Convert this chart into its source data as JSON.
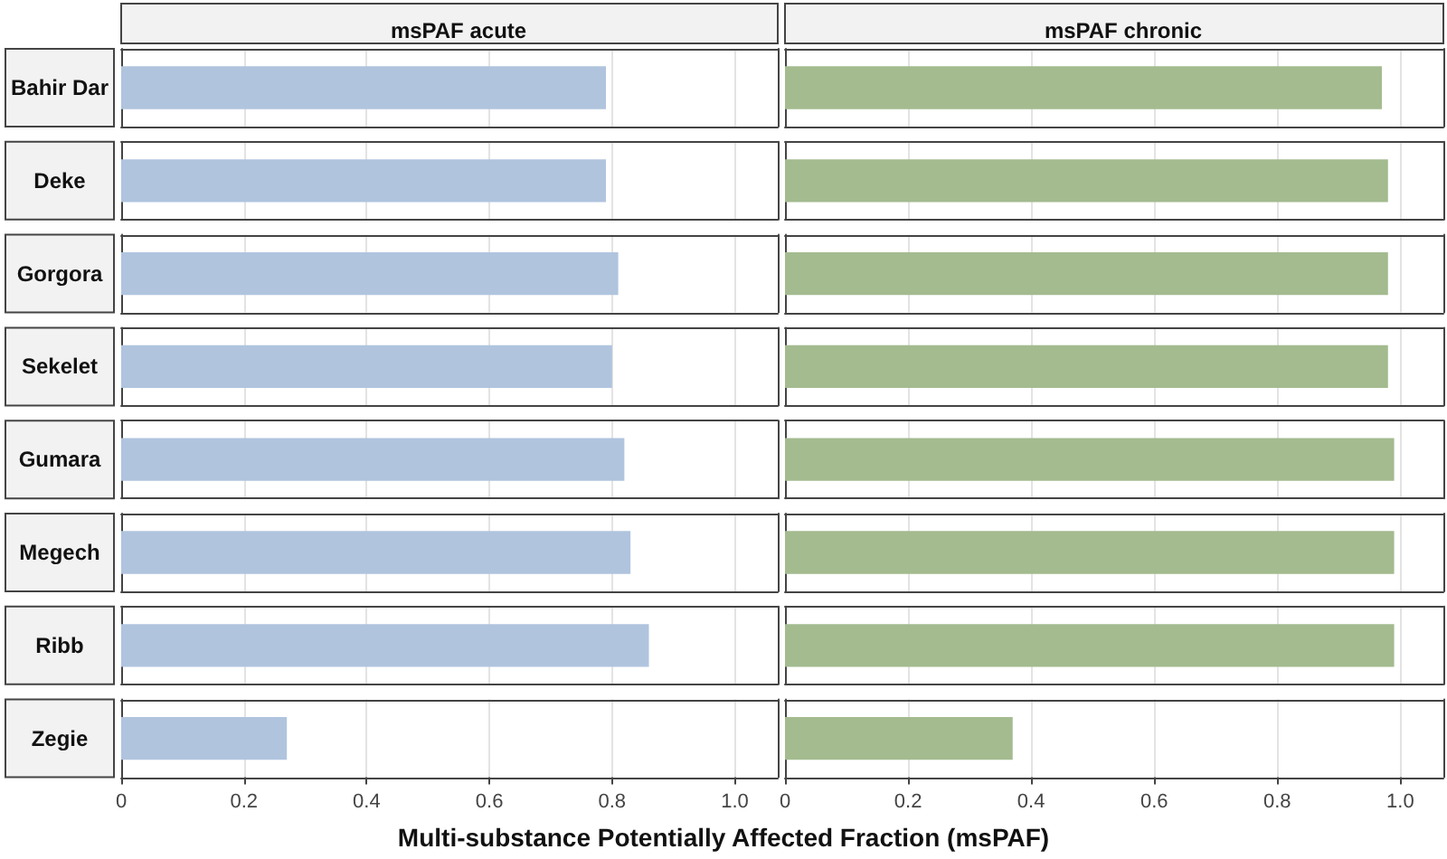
{
  "chart_data": [
    {
      "type": "bar",
      "orientation": "horizontal",
      "title": "msPAF acute",
      "xlabel": "Multi-substance Potentially Affected Fraction (msPAF)",
      "categories": [
        "Bahir Dar",
        "Deke",
        "Gorgora",
        "Sekelet",
        "Gumara",
        "Megech",
        "Ribb",
        "Zegie"
      ],
      "values": [
        0.79,
        0.79,
        0.81,
        0.8,
        0.82,
        0.83,
        0.86,
        0.27
      ],
      "color": "#b0c4de",
      "xlim": [
        0,
        1.07
      ],
      "xticks": [
        0,
        0.2,
        0.4,
        0.6,
        0.8,
        {
          "value": 1,
          "label": "1.0"
        }
      ],
      "grid": "x"
    },
    {
      "type": "bar",
      "orientation": "horizontal",
      "title": "msPAF chronic",
      "categories": [
        null,
        null,
        null,
        null,
        null,
        null,
        null,
        null
      ],
      "values": [
        0.97,
        0.98,
        0.98,
        0.98,
        0.99,
        0.99,
        0.99,
        0.37
      ],
      "color": "#a3bb8f",
      "xlim": [
        0,
        1.07
      ],
      "xticks": [
        0,
        0.2,
        0.4,
        0.6,
        0.8,
        {
          "value": 1,
          "label": "1.0"
        }
      ],
      "grid": "x",
      "tick_labels": "x"
    }
  ]
}
